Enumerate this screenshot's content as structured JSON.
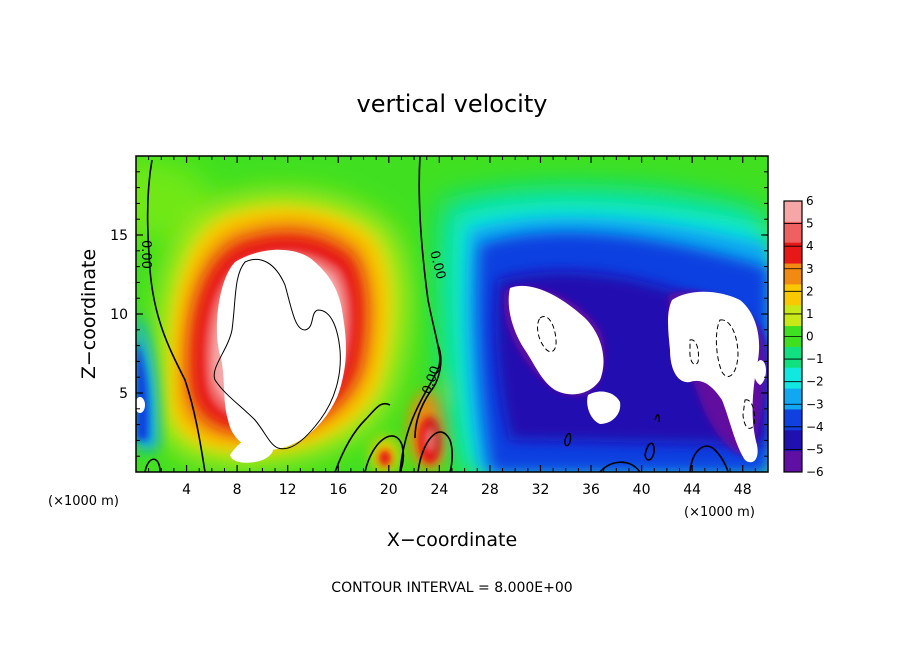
{
  "chart_data": {
    "type": "heatmap",
    "title": "vertical velocity",
    "xlabel": "X−coordinate",
    "ylabel": "Z−coordinate",
    "x_unit_left": "(×1000 m)",
    "x_unit_right": "(×1000 m)",
    "xlim": [
      0,
      50
    ],
    "ylim": [
      0,
      20
    ],
    "x_ticks": [
      4,
      8,
      12,
      16,
      20,
      24,
      28,
      32,
      36,
      40,
      44,
      48
    ],
    "y_ticks": [
      5,
      10,
      15
    ],
    "x_tick_labels": [
      "4",
      "8",
      "12",
      "16",
      "20",
      "24",
      "28",
      "32",
      "36",
      "40",
      "44",
      "48"
    ],
    "y_tick_labels": [
      "5",
      "10",
      "15"
    ],
    "colorbar": {
      "levels": [
        6,
        5,
        4,
        3,
        2,
        1,
        0,
        -1,
        -2,
        -3,
        -4,
        -5,
        -6
      ],
      "labels": [
        "6",
        "5",
        "4",
        "3",
        "2",
        "1",
        "0",
        "−1",
        "−2",
        "−3",
        "−4",
        "−5",
        "−6"
      ],
      "colors": [
        "#f5a6a6",
        "#f06060",
        "#e61818",
        "#f08a10",
        "#f8c800",
        "#c8e818",
        "#40e020",
        "#10e080",
        "#10e8e0",
        "#10a8f0",
        "#1040e0",
        "#2010b0",
        "#6010a0"
      ]
    },
    "contour_labels": [
      "0.00",
      "0.00",
      "0.00"
    ],
    "contour_interval_text": "CONTOUR INTERVAL = 8.000E+00",
    "features": [
      {
        "name": "updraft",
        "x": [
          4,
          21
        ],
        "z": [
          1,
          16
        ],
        "max": 6
      },
      {
        "name": "downdraft-central",
        "x": [
          27,
          38
        ],
        "z": [
          1,
          13
        ],
        "min": -6
      },
      {
        "name": "downdraft-right",
        "x": [
          42,
          50
        ],
        "z": [
          1,
          12
        ],
        "min": -6
      }
    ]
  }
}
